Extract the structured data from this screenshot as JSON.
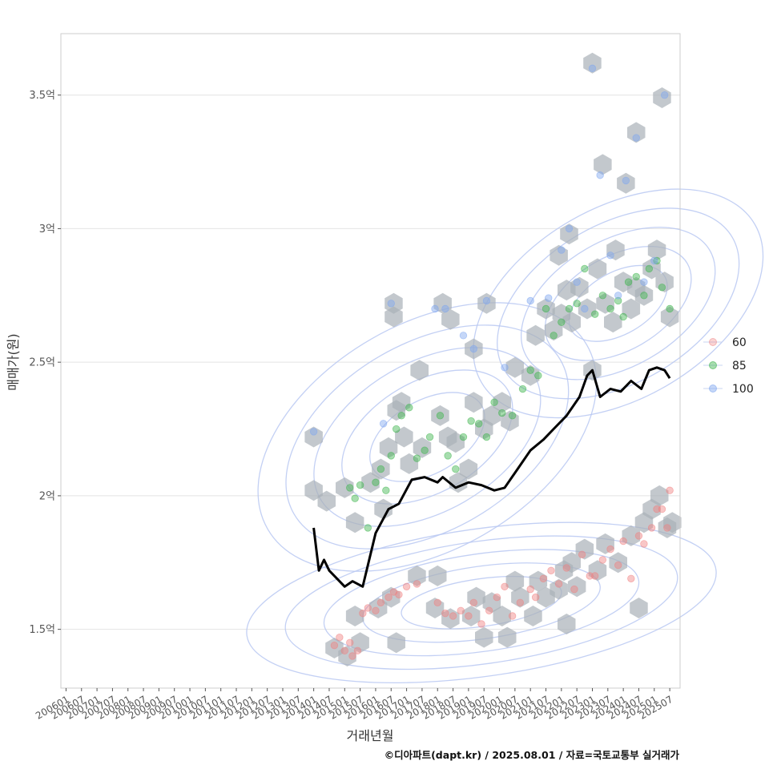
{
  "chart_data": {
    "type": "scatter",
    "xlabel": "거래년월",
    "ylabel": "매매가(원)",
    "caption": "©디아파트(dapt.kr) / 2025.08.01 / 자료=국토교통부 실거래가",
    "x_ticks": [
      "200601",
      "200607",
      "200701",
      "200707",
      "200801",
      "200807",
      "200901",
      "200907",
      "201001",
      "201007",
      "201101",
      "201107",
      "201201",
      "201207",
      "201301",
      "201307",
      "201401",
      "201407",
      "201501",
      "201507",
      "201601",
      "201607",
      "201701",
      "201707",
      "201801",
      "201807",
      "201901",
      "201907",
      "202001",
      "202007",
      "202101",
      "202107",
      "202201",
      "202207",
      "202301",
      "202307",
      "202401",
      "202407",
      "202501",
      "202507"
    ],
    "x_range": [
      "2005-11",
      "2025-11"
    ],
    "y_ticks": [
      {
        "value": 1.5,
        "label": "1.5억"
      },
      {
        "value": 2.0,
        "label": "2억"
      },
      {
        "value": 2.5,
        "label": "2.5억"
      },
      {
        "value": 3.0,
        "label": "3억"
      },
      {
        "value": 3.5,
        "label": "3.5억"
      }
    ],
    "y_unit": "억",
    "ylim": [
      1.28,
      3.73
    ],
    "grid": "horizontal",
    "legend_position": "right",
    "series": [
      {
        "name": "60",
        "color": "#f08080"
      },
      {
        "name": "85",
        "color": "#3cb44b"
      },
      {
        "name": "100",
        "color": "#7ea6f0"
      }
    ],
    "hex_color": "#a9b0b8",
    "contour_color": "#b8c8f2",
    "trend": {
      "name": "median",
      "color": "#000000",
      "x": [
        "2014-01",
        "2014-03",
        "2014-05",
        "2014-07",
        "2014-09",
        "2015-01",
        "2015-04",
        "2015-08",
        "2016-01",
        "2016-06",
        "2016-10",
        "2017-03",
        "2017-08",
        "2018-01",
        "2018-03",
        "2018-08",
        "2019-01",
        "2019-06",
        "2019-11",
        "2020-03",
        "2020-08",
        "2021-01",
        "2021-06",
        "2021-10",
        "2022-03",
        "2022-08",
        "2022-11",
        "2023-01",
        "2023-04",
        "2023-08",
        "2023-12",
        "2024-04",
        "2024-08",
        "2024-11",
        "2025-02",
        "2025-05",
        "2025-07"
      ],
      "y": [
        1.88,
        1.72,
        1.76,
        1.72,
        1.7,
        1.66,
        1.68,
        1.66,
        1.86,
        1.95,
        1.97,
        2.06,
        2.07,
        2.05,
        2.07,
        2.03,
        2.05,
        2.04,
        2.02,
        2.03,
        2.1,
        2.17,
        2.21,
        2.25,
        2.3,
        2.37,
        2.45,
        2.47,
        2.37,
        2.4,
        2.39,
        2.43,
        2.4,
        2.47,
        2.48,
        2.47,
        2.44
      ]
    },
    "points": {
      "60": [
        [
          "2014-09",
          1.44
        ],
        [
          "2014-11",
          1.47
        ],
        [
          "2015-01",
          1.42
        ],
        [
          "2015-03",
          1.45
        ],
        [
          "2015-04",
          1.4
        ],
        [
          "2015-06",
          1.42
        ],
        [
          "2015-08",
          1.56
        ],
        [
          "2015-10",
          1.58
        ],
        [
          "2016-01",
          1.57
        ],
        [
          "2016-03",
          1.6
        ],
        [
          "2016-06",
          1.62
        ],
        [
          "2016-08",
          1.64
        ],
        [
          "2016-10",
          1.63
        ],
        [
          "2017-01",
          1.66
        ],
        [
          "2017-05",
          1.67
        ],
        [
          "2018-01",
          1.6
        ],
        [
          "2018-04",
          1.56
        ],
        [
          "2018-07",
          1.55
        ],
        [
          "2018-10",
          1.57
        ],
        [
          "2019-01",
          1.55
        ],
        [
          "2019-03",
          1.6
        ],
        [
          "2019-06",
          1.52
        ],
        [
          "2019-09",
          1.57
        ],
        [
          "2019-12",
          1.62
        ],
        [
          "2020-03",
          1.66
        ],
        [
          "2020-06",
          1.55
        ],
        [
          "2020-09",
          1.6
        ],
        [
          "2021-01",
          1.65
        ],
        [
          "2021-03",
          1.62
        ],
        [
          "2021-06",
          1.69
        ],
        [
          "2021-09",
          1.72
        ],
        [
          "2021-12",
          1.67
        ],
        [
          "2022-03",
          1.73
        ],
        [
          "2022-06",
          1.65
        ],
        [
          "2022-09",
          1.78
        ],
        [
          "2022-12",
          1.7
        ],
        [
          "2023-02",
          1.7
        ],
        [
          "2023-05",
          1.76
        ],
        [
          "2023-08",
          1.8
        ],
        [
          "2023-11",
          1.74
        ],
        [
          "2024-01",
          1.83
        ],
        [
          "2024-04",
          1.69
        ],
        [
          "2024-07",
          1.85
        ],
        [
          "2024-09",
          1.82
        ],
        [
          "2024-12",
          1.88
        ],
        [
          "2025-02",
          1.95
        ],
        [
          "2025-04",
          1.95
        ],
        [
          "2025-06",
          1.88
        ],
        [
          "2025-07",
          2.02
        ]
      ],
      "85": [
        [
          "2015-03",
          2.03
        ],
        [
          "2015-05",
          1.99
        ],
        [
          "2015-07",
          2.04
        ],
        [
          "2015-10",
          1.88
        ],
        [
          "2016-01",
          2.05
        ],
        [
          "2016-03",
          2.1
        ],
        [
          "2016-05",
          2.02
        ],
        [
          "2016-07",
          2.15
        ],
        [
          "2016-09",
          2.25
        ],
        [
          "2016-11",
          2.3
        ],
        [
          "2017-02",
          2.33
        ],
        [
          "2017-05",
          2.14
        ],
        [
          "2017-08",
          2.17
        ],
        [
          "2017-10",
          2.22
        ],
        [
          "2018-02",
          2.3
        ],
        [
          "2018-05",
          2.15
        ],
        [
          "2018-08",
          2.1
        ],
        [
          "2018-11",
          2.22
        ],
        [
          "2019-02",
          2.28
        ],
        [
          "2019-05",
          2.27
        ],
        [
          "2019-08",
          2.22
        ],
        [
          "2019-11",
          2.35
        ],
        [
          "2020-02",
          2.31
        ],
        [
          "2020-06",
          2.3
        ],
        [
          "2020-10",
          2.4
        ],
        [
          "2021-01",
          2.47
        ],
        [
          "2021-04",
          2.45
        ],
        [
          "2021-07",
          2.7
        ],
        [
          "2021-10",
          2.6
        ],
        [
          "2022-01",
          2.65
        ],
        [
          "2022-04",
          2.7
        ],
        [
          "2022-07",
          2.72
        ],
        [
          "2022-10",
          2.85
        ],
        [
          "2023-02",
          2.68
        ],
        [
          "2023-05",
          2.75
        ],
        [
          "2023-08",
          2.7
        ],
        [
          "2023-11",
          2.73
        ],
        [
          "2024-01",
          2.67
        ],
        [
          "2024-03",
          2.8
        ],
        [
          "2024-06",
          2.82
        ],
        [
          "2024-09",
          2.75
        ],
        [
          "2024-11",
          2.85
        ],
        [
          "2025-02",
          2.88
        ],
        [
          "2025-04",
          2.78
        ],
        [
          "2025-07",
          2.7
        ]
      ],
      "100": [
        [
          "2014-01",
          2.24
        ],
        [
          "2016-04",
          2.27
        ],
        [
          "2016-07",
          2.72
        ],
        [
          "2017-12",
          2.7
        ],
        [
          "2018-04",
          2.7
        ],
        [
          "2018-11",
          2.6
        ],
        [
          "2019-03",
          2.55
        ],
        [
          "2019-08",
          2.73
        ],
        [
          "2020-03",
          2.48
        ],
        [
          "2021-01",
          2.73
        ],
        [
          "2021-08",
          2.74
        ],
        [
          "2022-01",
          2.92
        ],
        [
          "2022-04",
          3.0
        ],
        [
          "2022-07",
          2.8
        ],
        [
          "2022-10",
          2.7
        ],
        [
          "2023-01",
          3.6
        ],
        [
          "2023-04",
          3.2
        ],
        [
          "2023-08",
          2.9
        ],
        [
          "2023-11",
          2.75
        ],
        [
          "2024-02",
          3.18
        ],
        [
          "2024-06",
          3.34
        ],
        [
          "2024-09",
          2.8
        ],
        [
          "2025-01",
          2.88
        ],
        [
          "2025-05",
          3.5
        ]
      ]
    },
    "hexes": [
      [
        "2014-09",
        1.43
      ],
      [
        "2015-02",
        1.4
      ],
      [
        "2015-07",
        1.45
      ],
      [
        "2015-05",
        1.55
      ],
      [
        "2016-02",
        1.58
      ],
      [
        "2016-07",
        1.62
      ],
      [
        "2016-09",
        1.45
      ],
      [
        "2017-05",
        1.7
      ],
      [
        "2018-01",
        1.7
      ],
      [
        "2017-12",
        1.58
      ],
      [
        "2018-06",
        1.54
      ],
      [
        "2019-02",
        1.55
      ],
      [
        "2019-04",
        1.62
      ],
      [
        "2019-10",
        1.6
      ],
      [
        "2019-07",
        1.47
      ],
      [
        "2020-02",
        1.55
      ],
      [
        "2020-07",
        1.68
      ],
      [
        "2020-04",
        1.47
      ],
      [
        "2020-09",
        1.62
      ],
      [
        "2021-02",
        1.55
      ],
      [
        "2021-04",
        1.68
      ],
      [
        "2021-07",
        1.62
      ],
      [
        "2021-12",
        1.65
      ],
      [
        "2022-02",
        1.72
      ],
      [
        "2022-05",
        1.75
      ],
      [
        "2022-03",
        1.52
      ],
      [
        "2022-07",
        1.66
      ],
      [
        "2022-10",
        1.8
      ],
      [
        "2023-03",
        1.72
      ],
      [
        "2023-06",
        1.82
      ],
      [
        "2023-11",
        1.75
      ],
      [
        "2024-04",
        1.85
      ],
      [
        "2024-07",
        1.58
      ],
      [
        "2024-09",
        1.9
      ],
      [
        "2024-12",
        1.95
      ],
      [
        "2025-03",
        2.0
      ],
      [
        "2025-06",
        1.88
      ],
      [
        "2025-08",
        1.9
      ],
      [
        "2014-01",
        2.22
      ],
      [
        "2014-01",
        2.02
      ],
      [
        "2014-06",
        1.98
      ],
      [
        "2015-01",
        2.03
      ],
      [
        "2015-05",
        1.9
      ],
      [
        "2015-11",
        2.05
      ],
      [
        "2016-03",
        2.1
      ],
      [
        "2016-04",
        1.95
      ],
      [
        "2016-06",
        2.18
      ],
      [
        "2016-09",
        2.32
      ],
      [
        "2016-11",
        2.35
      ],
      [
        "2016-12",
        2.22
      ],
      [
        "2017-07",
        2.18
      ],
      [
        "2017-02",
        2.12
      ],
      [
        "2017-06",
        2.47
      ],
      [
        "2018-02",
        2.3
      ],
      [
        "2018-05",
        2.22
      ],
      [
        "2018-08",
        2.2
      ],
      [
        "2018-09",
        2.05
      ],
      [
        "2019-01",
        2.1
      ],
      [
        "2019-03",
        2.35
      ],
      [
        "2019-07",
        2.25
      ],
      [
        "2019-10",
        2.3
      ],
      [
        "2020-02",
        2.35
      ],
      [
        "2020-05",
        2.28
      ],
      [
        "2020-07",
        2.48
      ],
      [
        "2021-01",
        2.45
      ],
      [
        "2021-03",
        2.6
      ],
      [
        "2021-07",
        2.7
      ],
      [
        "2021-10",
        2.62
      ],
      [
        "2022-01",
        2.68
      ],
      [
        "2022-03",
        2.77
      ],
      [
        "2022-05",
        2.65
      ],
      [
        "2022-08",
        2.78
      ],
      [
        "2022-11",
        2.7
      ],
      [
        "2023-01",
        2.47
      ],
      [
        "2023-03",
        2.85
      ],
      [
        "2023-06",
        2.72
      ],
      [
        "2023-09",
        2.65
      ],
      [
        "2023-10",
        2.92
      ],
      [
        "2024-01",
        2.8
      ],
      [
        "2024-04",
        2.7
      ],
      [
        "2024-06",
        2.78
      ],
      [
        "2024-09",
        2.75
      ],
      [
        "2024-12",
        2.85
      ],
      [
        "2025-02",
        2.92
      ],
      [
        "2025-05",
        2.8
      ],
      [
        "2025-07",
        2.67
      ],
      [
        "2016-08",
        2.72
      ],
      [
        "2016-08",
        2.67
      ],
      [
        "2018-03",
        2.72
      ],
      [
        "2018-06",
        2.66
      ],
      [
        "2019-03",
        2.55
      ],
      [
        "2019-08",
        2.72
      ],
      [
        "2023-01",
        3.62
      ],
      [
        "2023-05",
        3.24
      ],
      [
        "2024-02",
        3.17
      ],
      [
        "2024-06",
        3.36
      ],
      [
        "2025-04",
        3.49
      ],
      [
        "2022-04",
        2.98
      ],
      [
        "2021-12",
        2.9
      ]
    ]
  }
}
